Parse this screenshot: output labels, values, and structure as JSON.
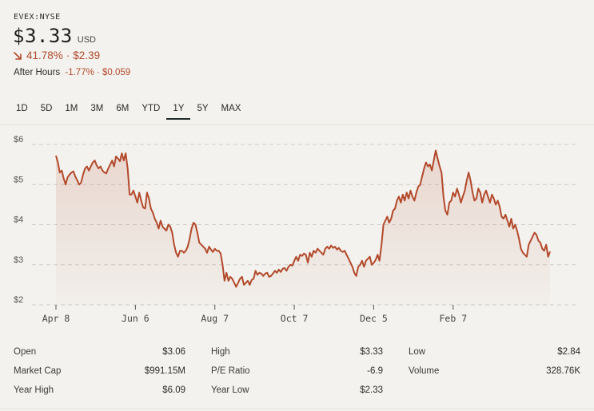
{
  "header": {
    "ticker": "EVEX:NYSE",
    "price": "$3.33",
    "currency": "USD",
    "change_percent": "41.78%",
    "change_separator": "·",
    "change_amount": "$2.39",
    "change_direction_icon": "arrow-down-right-icon",
    "after_hours_label": "After Hours",
    "after_hours_change": "-1.77% · $0.059"
  },
  "tabs": [
    {
      "label": "1D"
    },
    {
      "label": "5D"
    },
    {
      "label": "1M"
    },
    {
      "label": "3M"
    },
    {
      "label": "6M"
    },
    {
      "label": "YTD"
    },
    {
      "label": "1Y"
    },
    {
      "label": "5Y"
    },
    {
      "label": "MAX"
    }
  ],
  "active_tab": "1Y",
  "colors": {
    "line": "#b3492b",
    "negative": "#b3492b",
    "grid": "#cfcdc8",
    "fill_top": "#b3492b",
    "background": "#f3f2ee"
  },
  "chart_data": {
    "type": "area",
    "title": "",
    "xlabel": "",
    "ylabel": "",
    "ylim": [
      2,
      6
    ],
    "yticks": [
      "$6",
      "$5",
      "$4",
      "$3",
      "$2"
    ],
    "ytick_values": [
      6,
      5,
      4,
      3,
      2
    ],
    "xticks": [
      "Apr 8",
      "Jun 6",
      "Aug 7",
      "Oct 7",
      "Dec 5",
      "Feb 7"
    ],
    "xtick_indices": [
      0,
      41,
      82,
      123,
      164,
      205
    ],
    "grid": true,
    "series": [
      {
        "name": "EVEX",
        "values": [
          5.72,
          5.55,
          5.3,
          5.35,
          5.15,
          5.0,
          5.18,
          5.25,
          5.3,
          5.33,
          5.2,
          5.1,
          5.0,
          5.05,
          5.25,
          5.4,
          5.45,
          5.35,
          5.45,
          5.55,
          5.6,
          5.48,
          5.4,
          5.45,
          5.35,
          5.3,
          5.28,
          5.4,
          5.5,
          5.6,
          5.45,
          5.7,
          5.65,
          5.58,
          5.78,
          5.6,
          5.78,
          5.4,
          4.75,
          4.75,
          4.85,
          4.7,
          4.55,
          4.8,
          4.6,
          4.43,
          4.4,
          4.8,
          4.65,
          4.4,
          4.3,
          4.15,
          4.05,
          3.9,
          4.1,
          3.95,
          3.9,
          3.85,
          4.0,
          3.95,
          3.8,
          3.5,
          3.3,
          3.2,
          3.35,
          3.35,
          3.3,
          3.35,
          3.45,
          3.65,
          3.9,
          4.05,
          4.0,
          3.8,
          3.55,
          3.5,
          3.45,
          3.4,
          3.3,
          3.45,
          3.38,
          3.32,
          3.4,
          3.35,
          3.35,
          3.28,
          3.0,
          2.6,
          2.8,
          2.6,
          2.7,
          2.65,
          2.55,
          2.45,
          2.55,
          2.65,
          2.7,
          2.5,
          2.55,
          2.6,
          2.5,
          2.62,
          2.65,
          2.85,
          2.75,
          2.8,
          2.78,
          2.72,
          2.78,
          2.8,
          2.7,
          2.72,
          2.78,
          2.85,
          2.8,
          2.88,
          2.82,
          2.9,
          2.92,
          2.85,
          2.95,
          3.0,
          2.98,
          3.1,
          3.2,
          3.1,
          3.25,
          3.22,
          3.28,
          3.25,
          3.05,
          3.3,
          3.2,
          3.35,
          3.3,
          3.4,
          3.35,
          3.3,
          3.25,
          3.4,
          3.45,
          3.4,
          3.48,
          3.42,
          3.45,
          3.38,
          3.42,
          3.35,
          3.32,
          3.35,
          3.25,
          3.15,
          3.05,
          2.95,
          2.8,
          2.72,
          2.95,
          3.0,
          3.1,
          2.95,
          3.1,
          3.15,
          3.2,
          3.0,
          3.05,
          3.12,
          3.25,
          3.1,
          3.5,
          4.0,
          4.1,
          4.2,
          4.05,
          4.15,
          4.35,
          4.4,
          4.6,
          4.7,
          4.55,
          4.75,
          4.6,
          4.8,
          4.65,
          4.85,
          4.7,
          4.6,
          4.8,
          4.95,
          5.0,
          5.2,
          5.4,
          5.55,
          5.45,
          5.5,
          5.35,
          5.6,
          5.85,
          5.65,
          5.45,
          5.3,
          4.7,
          4.35,
          4.25,
          4.55,
          4.6,
          4.8,
          4.7,
          4.9,
          4.75,
          4.55,
          4.7,
          4.85,
          5.1,
          5.3,
          5.1,
          4.8,
          4.6,
          4.65,
          4.9,
          4.8,
          4.55,
          4.75,
          4.85,
          4.7,
          4.55,
          4.75,
          4.65,
          4.5,
          4.6,
          4.45,
          4.2,
          4.15,
          4.25,
          4.1,
          3.95,
          4.15,
          3.9,
          4.0,
          3.85,
          3.65,
          3.4,
          3.3,
          3.25,
          3.2,
          3.5,
          3.6,
          3.7,
          3.8,
          3.75,
          3.6,
          3.55,
          3.4,
          3.35,
          3.5,
          3.2,
          3.33
        ]
      }
    ]
  },
  "stats": [
    [
      {
        "label": "Open",
        "value": "$3.06"
      },
      {
        "label": "High",
        "value": "$3.33"
      },
      {
        "label": "Low",
        "value": "$2.84"
      }
    ],
    [
      {
        "label": "Market Cap",
        "value": "$991.15M"
      },
      {
        "label": "P/E Ratio",
        "value": "-6.9"
      },
      {
        "label": "Volume",
        "value": "328.76K"
      }
    ],
    [
      {
        "label": "Year High",
        "value": "$6.09"
      },
      {
        "label": "Year Low",
        "value": "$2.33"
      }
    ]
  ]
}
